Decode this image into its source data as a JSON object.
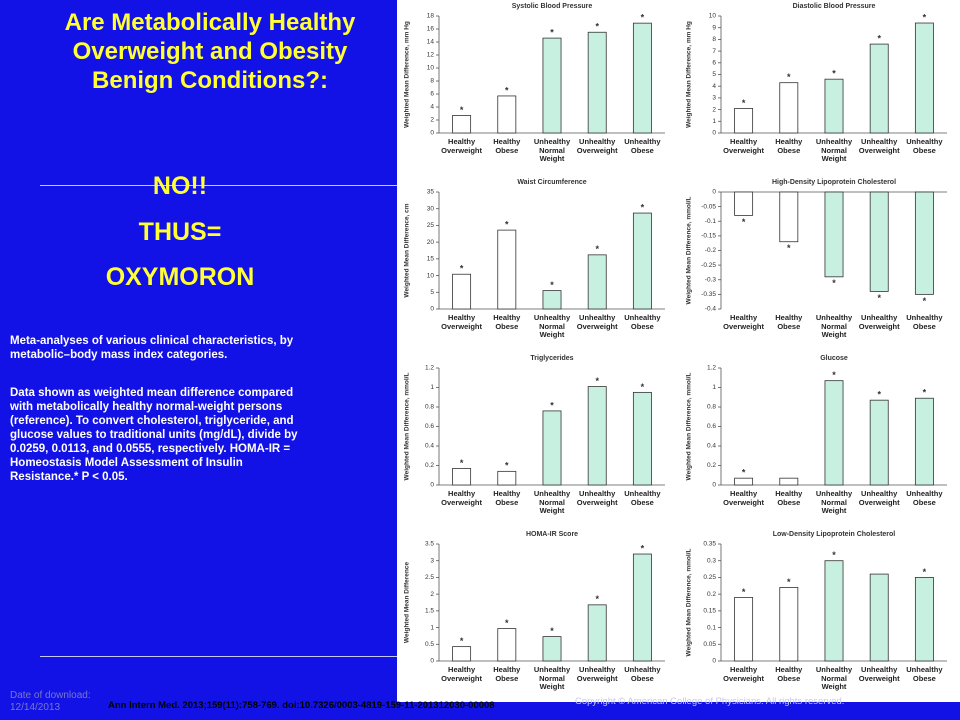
{
  "slide": {
    "title": "Are Metabolically Healthy Overweight and Obesity Benign Conditions?:",
    "answer_lines": [
      "NO!!",
      "THUS=",
      "OXYMORON"
    ],
    "caption": [
      "Meta-analyses of various clinical characteristics, by metabolic–body mass index categories.",
      "Data shown as weighted mean difference compared with metabolically healthy normal-weight persons (reference).  To convert cholesterol, triglyceride, and glucose values to traditional units (mg/dL), divide by 0.0259, 0.0113, and 0.0555, respectively. HOMA-IR = Homeostasis Model Assessment of Insulin Resistance.* P < 0.05."
    ],
    "date": "Date of download: 12/14/2013",
    "citation": "Ann Intern Med. 2013;159(11):758-769. doi:10.7326/0003-4819-159-11-201312030-00008",
    "copyright": "Copyright © American College of Physicians. All rights reserved."
  },
  "chart_data": [
    {
      "type": "bar",
      "title": "Systolic Blood Pressure",
      "y_label": "Weighted Mean Difference, mm Hg",
      "categories": [
        "Healthy Overweight",
        "Healthy Obese",
        "Unhealthy Normal Weight",
        "Unhealthy Overweight",
        "Unhealthy Obese"
      ],
      "values": [
        2.7,
        5.7,
        14.6,
        15.5,
        16.9
      ],
      "significance": [
        "*",
        "*",
        "*",
        "*",
        "*"
      ],
      "colors": [
        "#ffffff",
        "#ffffff",
        "#c8f0e0",
        "#c8f0e0",
        "#c8f0e0"
      ],
      "ylim": [
        0,
        18
      ],
      "yticks": [
        0,
        2,
        4,
        6,
        8,
        10,
        12,
        14,
        16,
        18
      ],
      "grid": false
    },
    {
      "type": "bar",
      "title": "Diastolic Blood Pressure",
      "y_label": "Weighted Mean Difference, mm Hg",
      "categories": [
        "Healthy Overweight",
        "Healthy Obese",
        "Unhealthy Normal Weight",
        "Unhealthy Overweight",
        "Unhealthy Obese"
      ],
      "values": [
        2.1,
        4.3,
        4.6,
        7.6,
        9.4
      ],
      "significance": [
        "*",
        "*",
        "*",
        "*",
        "*"
      ],
      "colors": [
        "#ffffff",
        "#ffffff",
        "#c8f0e0",
        "#c8f0e0",
        "#c8f0e0"
      ],
      "ylim": [
        0,
        10
      ],
      "yticks": [
        0,
        1,
        2,
        3,
        4,
        5,
        6,
        7,
        8,
        9,
        10
      ],
      "grid": false
    },
    {
      "type": "bar",
      "title": "Waist Circumference",
      "y_label": "Weighted Mean Difference, cm",
      "categories": [
        "Healthy Overweight",
        "Healthy Obese",
        "Unhealthy Normal Weight",
        "Unhealthy Overweight",
        "Unhealthy Obese"
      ],
      "values": [
        10.4,
        23.6,
        5.5,
        16.2,
        28.7
      ],
      "significance": [
        "*",
        "*",
        "*",
        "*",
        "*"
      ],
      "colors": [
        "#ffffff",
        "#ffffff",
        "#c8f0e0",
        "#c8f0e0",
        "#c8f0e0"
      ],
      "ylim": [
        0,
        35
      ],
      "yticks": [
        0,
        5,
        10,
        15,
        20,
        25,
        30,
        35
      ],
      "grid": false
    },
    {
      "type": "bar",
      "title": "High-Density Lipoprotein Cholesterol",
      "y_label": "Weighted Mean Difference, mmol/L",
      "categories": [
        "Healthy Overweight",
        "Healthy Obese",
        "Unhealthy Normal Weight",
        "Unhealthy Overweight",
        "Unhealthy Obese"
      ],
      "values": [
        -0.08,
        -0.17,
        -0.29,
        -0.34,
        -0.35
      ],
      "significance": [
        "*",
        "*",
        "*",
        "*",
        "*"
      ],
      "colors": [
        "#ffffff",
        "#ffffff",
        "#c8f0e0",
        "#c8f0e0",
        "#c8f0e0"
      ],
      "ylim": [
        -0.4,
        0
      ],
      "yticks": [
        0,
        -0.05,
        -0.1,
        -0.15,
        -0.2,
        -0.25,
        -0.3,
        -0.35,
        -0.4
      ],
      "grid": false
    },
    {
      "type": "bar",
      "title": "Triglycerides",
      "y_label": "Weighted Mean Difference, mmol/L",
      "categories": [
        "Healthy Overweight",
        "Healthy Obese",
        "Unhealthy Normal Weight",
        "Unhealthy Overweight",
        "Unhealthy Obese"
      ],
      "values": [
        0.17,
        0.14,
        0.76,
        1.01,
        0.95
      ],
      "significance": [
        "*",
        "*",
        "*",
        "*",
        "*"
      ],
      "colors": [
        "#ffffff",
        "#ffffff",
        "#c8f0e0",
        "#c8f0e0",
        "#c8f0e0"
      ],
      "ylim": [
        0,
        1.2
      ],
      "yticks": [
        0,
        0.2,
        0.4,
        0.6,
        0.8,
        1,
        1.2
      ],
      "grid": false
    },
    {
      "type": "bar",
      "title": "Glucose",
      "y_label": "Weighted Mean Difference, mmol/L",
      "categories": [
        "Healthy Overweight",
        "Healthy Obese",
        "Unhealthy Normal Weight",
        "Unhealthy Overweight",
        "Unhealthy Obese"
      ],
      "values": [
        0.07,
        0.07,
        1.07,
        0.87,
        0.89
      ],
      "significance": [
        "*",
        null,
        "*",
        "*",
        "*"
      ],
      "colors": [
        "#ffffff",
        "#ffffff",
        "#c8f0e0",
        "#c8f0e0",
        "#c8f0e0"
      ],
      "ylim": [
        0,
        1.2
      ],
      "yticks": [
        0,
        0.2,
        0.4,
        0.6,
        0.8,
        1,
        1.2
      ],
      "grid": false
    },
    {
      "type": "bar",
      "title": "HOMA-IR Score",
      "y_label": "Weighted Mean Difference",
      "categories": [
        "Healthy Overweight",
        "Healthy Obese",
        "Unhealthy Normal Weight",
        "Unhealthy Overweight",
        "Unhealthy Obese"
      ],
      "values": [
        0.43,
        0.97,
        0.73,
        1.68,
        3.2
      ],
      "significance": [
        "*",
        "*",
        "*",
        "*",
        "*"
      ],
      "colors": [
        "#ffffff",
        "#ffffff",
        "#c8f0e0",
        "#c8f0e0",
        "#c8f0e0"
      ],
      "ylim": [
        0,
        3.5
      ],
      "yticks": [
        0,
        0.5,
        1,
        1.5,
        2,
        2.5,
        3,
        3.5
      ],
      "grid": false
    },
    {
      "type": "bar",
      "title": "Low-Density Lipoprotein Cholesterol",
      "y_label": "Weighted Mean Difference, mmol/L",
      "categories": [
        "Healthy Overweight",
        "Healthy Obese",
        "Unhealthy Normal Weight",
        "Unhealthy Overweight",
        "Unhealthy Obese"
      ],
      "values": [
        0.19,
        0.22,
        0.3,
        0.26,
        0.25
      ],
      "significance": [
        "*",
        "*",
        "*",
        null,
        "*"
      ],
      "colors": [
        "#ffffff",
        "#ffffff",
        "#c8f0e0",
        "#c8f0e0",
        "#c8f0e0"
      ],
      "ylim": [
        0,
        0.35
      ],
      "yticks": [
        0,
        0.05,
        0.1,
        0.15,
        0.2,
        0.25,
        0.3,
        0.35
      ],
      "grid": false
    }
  ]
}
